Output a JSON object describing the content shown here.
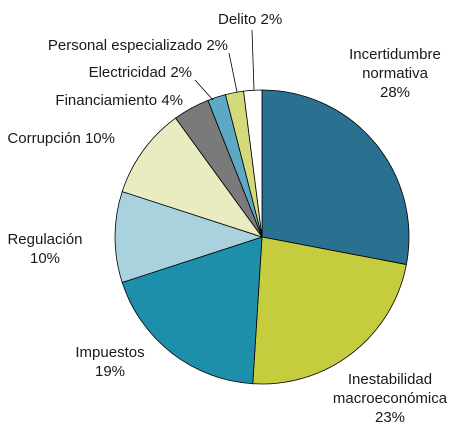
{
  "chart_data": {
    "type": "pie",
    "categories": [
      "Incertidumbre normativa",
      "Inestabilidad macroeconómica",
      "Impuestos",
      "Regulación",
      "Corrupción",
      "Financiamiento",
      "Electricidad",
      "Personal especializado",
      "Delito"
    ],
    "values": [
      28,
      23,
      19,
      10,
      10,
      4,
      2,
      2,
      2
    ],
    "value_labels": [
      "28%",
      "23%",
      "19%",
      "10%",
      "10%",
      "4%",
      "2%",
      "2%",
      "2%"
    ],
    "colors": [
      "#2a7090",
      "#c5cc3e",
      "#1e8fab",
      "#a9d1de",
      "#e8ecc0",
      "#7a7a7a",
      "#5ba9c4",
      "#d4d97a",
      "#ffffff"
    ]
  }
}
